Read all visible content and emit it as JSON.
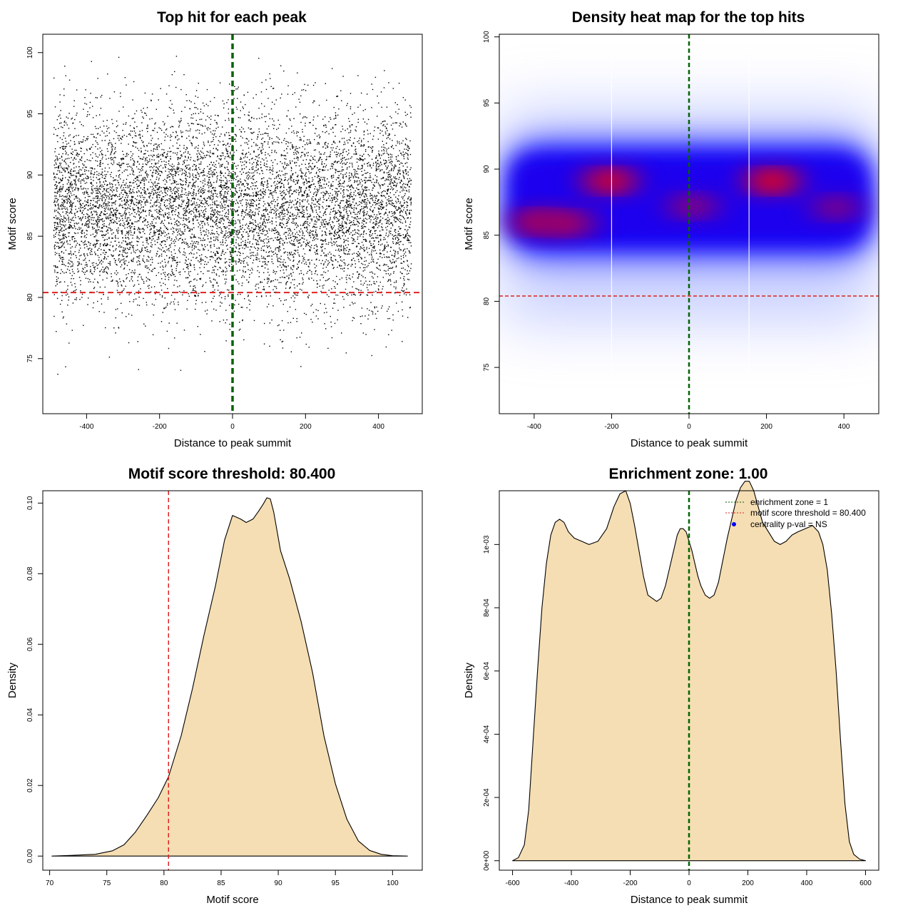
{
  "colors": {
    "threshold": "#dd2222",
    "enrichment": "#006400",
    "fill": "#f5deb3",
    "heat_low": "#ffffff",
    "heat_mid": "#0000ff",
    "heat_high": "#ff0000",
    "point": "#000000",
    "legend_dot": "#0000ff"
  },
  "chart_data": [
    {
      "type": "scatter",
      "title": "Top hit for each peak",
      "xlabel": "Distance to peak summit",
      "ylabel": "Motif score",
      "xlim": [
        -520,
        520
      ],
      "ylim": [
        70.5,
        101.5
      ],
      "xticks": [
        -400,
        -200,
        0,
        200,
        400
      ],
      "yticks": [
        75,
        80,
        85,
        90,
        95,
        100
      ],
      "xtick_labels": [
        "-400",
        "-200",
        "0",
        "200",
        "400"
      ],
      "ytick_labels": [
        "75",
        "80",
        "85",
        "90",
        "95",
        "100"
      ],
      "x_range": [
        -490,
        490
      ],
      "y_center": 87.3,
      "y_sd": 3.9,
      "n_points": 9000,
      "threshold": 80.4,
      "enrichment_line": 0
    },
    {
      "type": "heatmap",
      "title": "Density heat map for the top hits",
      "xlabel": "Distance to peak summit",
      "ylabel": "Motif score",
      "xlim": [
        -490,
        490
      ],
      "ylim": [
        71.5,
        100.2
      ],
      "xticks": [
        -400,
        -200,
        0,
        200,
        400
      ],
      "yticks": [
        75,
        80,
        85,
        90,
        95,
        100
      ],
      "xtick_labels": [
        "-400",
        "-200",
        "0",
        "200",
        "400"
      ],
      "ytick_labels": [
        "75",
        "80",
        "85",
        "90",
        "95",
        "100"
      ],
      "hotspots": [
        {
          "x": -205,
          "y": 89.1,
          "w": 0.9
        },
        {
          "x": 215,
          "y": 89.1,
          "w": 1.0
        },
        {
          "x": -390,
          "y": 86.0,
          "w": 0.75
        },
        {
          "x": -310,
          "y": 85.9,
          "w": 0.6
        },
        {
          "x": 10,
          "y": 87.2,
          "w": 0.45
        },
        {
          "x": 380,
          "y": 87.1,
          "w": 0.4
        }
      ],
      "threshold": 80.4,
      "enrichment_line": 0,
      "white_lines_x": [
        -200,
        155
      ]
    },
    {
      "type": "area",
      "title": "Motif score threshold: 80.400",
      "xlabel": "Motif score",
      "ylabel": "Density",
      "xlim": [
        69.4,
        102.6
      ],
      "ylim": [
        -0.004,
        0.1035
      ],
      "xticks": [
        70,
        75,
        80,
        85,
        90,
        95,
        100
      ],
      "yticks": [
        0,
        0.02,
        0.04,
        0.06,
        0.08,
        0.1
      ],
      "xtick_labels": [
        "70",
        "75",
        "80",
        "85",
        "90",
        "95",
        "100"
      ],
      "ytick_labels": [
        "0.00",
        "0.02",
        "0.04",
        "0.06",
        "0.08",
        "0.10"
      ],
      "x": [
        70.2,
        72,
        74,
        75.5,
        76.5,
        77.5,
        78.5,
        79.5,
        80.4,
        81.5,
        82.5,
        83.5,
        84.5,
        85.3,
        86,
        86.7,
        87.2,
        87.8,
        88.3,
        88.7,
        89,
        89.3,
        89.6,
        90.2,
        91,
        92,
        93,
        94,
        95,
        96,
        97,
        98,
        99,
        100,
        101.3
      ],
      "y": [
        0,
        0.0002,
        0.0005,
        0.0015,
        0.0032,
        0.0068,
        0.0115,
        0.0165,
        0.0225,
        0.034,
        0.0475,
        0.0625,
        0.0765,
        0.0895,
        0.0965,
        0.0955,
        0.0945,
        0.0955,
        0.0978,
        0.0998,
        0.1015,
        0.1012,
        0.0975,
        0.0865,
        0.0785,
        0.0665,
        0.052,
        0.034,
        0.0205,
        0.0105,
        0.0043,
        0.0016,
        0.0005,
        0.0001,
        0
      ],
      "threshold": 80.4
    },
    {
      "type": "area",
      "title": "Enrichment zone: 1.00",
      "xlabel": "Distance to peak summit",
      "ylabel": "Density",
      "xlim": [
        -645,
        645
      ],
      "ylim": [
        -3e-05,
        0.00117
      ],
      "xticks": [
        -600,
        -400,
        -200,
        0,
        200,
        400,
        600
      ],
      "yticks": [
        0,
        0.0002,
        0.0004,
        0.0006,
        0.0008,
        0.001
      ],
      "xtick_labels": [
        "-600",
        "-400",
        "-200",
        "0",
        "200",
        "400",
        "600"
      ],
      "ytick_labels": [
        "0e+00",
        "2e-04",
        "4e-04",
        "6e-04",
        "8e-04",
        "1e-03"
      ],
      "x": [
        -600,
        -580,
        -560,
        -545,
        -530,
        -515,
        -500,
        -485,
        -470,
        -455,
        -440,
        -425,
        -410,
        -390,
        -365,
        -340,
        -310,
        -280,
        -255,
        -235,
        -215,
        -200,
        -185,
        -170,
        -155,
        -140,
        -125,
        -110,
        -95,
        -80,
        -65,
        -50,
        -40,
        -30,
        -20,
        -10,
        0,
        10,
        20,
        30,
        40,
        55,
        70,
        85,
        100,
        115,
        130,
        145,
        160,
        175,
        190,
        205,
        220,
        235,
        250,
        270,
        290,
        310,
        330,
        350,
        370,
        395,
        420,
        440,
        455,
        470,
        485,
        500,
        515,
        530,
        545,
        560,
        580,
        600
      ],
      "y": [
        0,
        1e-05,
        5e-05,
        0.00016,
        0.00038,
        0.0006,
        0.0008,
        0.00094,
        0.00103,
        0.00107,
        0.00108,
        0.00107,
        0.00104,
        0.00102,
        0.00101,
        0.001,
        0.00101,
        0.00105,
        0.00112,
        0.00116,
        0.00117,
        0.00113,
        0.00106,
        0.00098,
        0.0009,
        0.00084,
        0.00083,
        0.00082,
        0.00083,
        0.00087,
        0.00093,
        0.00099,
        0.00103,
        0.00105,
        0.00105,
        0.00104,
        0.00101,
        0.00098,
        0.00094,
        0.0009,
        0.00087,
        0.00084,
        0.00083,
        0.00084,
        0.00088,
        0.00095,
        0.00102,
        0.00108,
        0.00114,
        0.00118,
        0.0012,
        0.0012,
        0.00117,
        0.00112,
        0.00107,
        0.00104,
        0.00101,
        0.001,
        0.00101,
        0.00103,
        0.00104,
        0.00105,
        0.00106,
        0.00104,
        0.001,
        0.00092,
        0.00078,
        0.0006,
        0.00038,
        0.00018,
        6e-05,
        2e-05,
        5e-06,
        0
      ],
      "enrichment_line": 0,
      "legend": [
        {
          "label": "enrichment zone = 1",
          "kind": "line",
          "color": "#006400"
        },
        {
          "label": "motif score threshold = 80.400",
          "kind": "line",
          "color": "#dd2222"
        },
        {
          "label": "centrality p-val = NS",
          "kind": "dot",
          "color": "#0000ff"
        }
      ]
    }
  ]
}
